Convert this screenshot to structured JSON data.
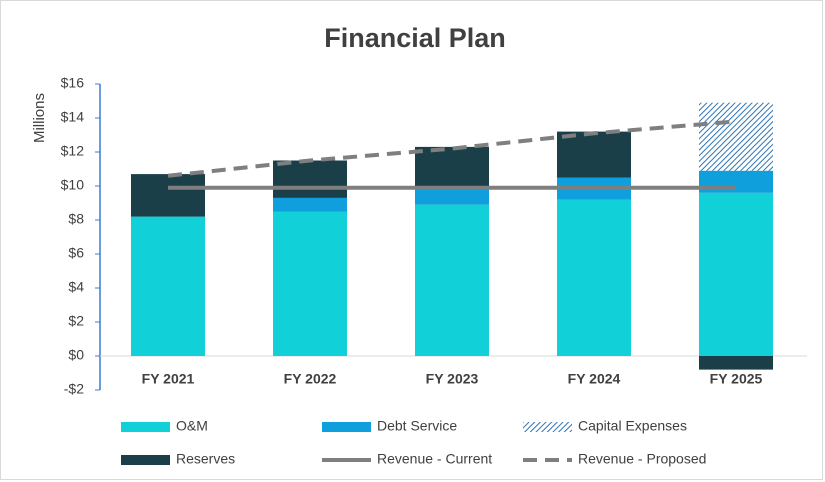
{
  "chart_data": {
    "type": "bar",
    "title": "Financial Plan",
    "y_label": "Millions",
    "categories": [
      "FY 2021",
      "FY 2022",
      "FY 2023",
      "FY 2024",
      "FY 2025"
    ],
    "series": [
      {
        "name": "O&M",
        "color": "#12d0d8",
        "values": [
          8.2,
          8.5,
          8.9,
          9.2,
          9.6
        ]
      },
      {
        "name": "Debt Service",
        "color": "#0e9fdc",
        "values": [
          0,
          0.8,
          1.1,
          1.3,
          1.3
        ]
      },
      {
        "name": "Capital Expenses",
        "color": "#2e75b6",
        "pattern": "hatch",
        "values": [
          0,
          0,
          0,
          0,
          4.0
        ]
      },
      {
        "name": "Reserves",
        "color": "#1b3f48",
        "values": [
          2.5,
          2.2,
          2.3,
          2.7,
          -0.8
        ]
      },
      {
        "name": "Revenue - Current",
        "color": "#7f7f7f",
        "type": "line",
        "values": [
          9.9,
          9.9,
          9.9,
          9.9,
          9.9
        ]
      },
      {
        "name": "Revenue - Proposed",
        "color": "#7f7f7f",
        "type": "line",
        "dashed": true,
        "values": [
          10.6,
          11.5,
          12.2,
          13.1,
          13.8
        ]
      }
    ],
    "ylim": [
      -2,
      16
    ],
    "yticks": [
      {
        "value": -2,
        "label": "-$2"
      },
      {
        "value": 0,
        "label": "$0"
      },
      {
        "value": 2,
        "label": "$2"
      },
      {
        "value": 4,
        "label": "$4"
      },
      {
        "value": 6,
        "label": "$6"
      },
      {
        "value": 8,
        "label": "$8"
      },
      {
        "value": 10,
        "label": "$10"
      },
      {
        "value": 12,
        "label": "$12"
      },
      {
        "value": 14,
        "label": "$14"
      },
      {
        "value": 16,
        "label": "$16"
      }
    ],
    "legend": "bottom"
  }
}
